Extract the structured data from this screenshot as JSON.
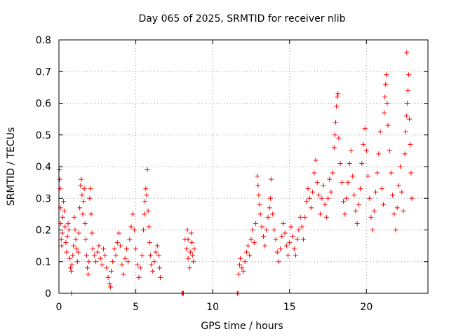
{
  "chart_data": {
    "type": "scatter",
    "title": "Day 065 of 2025, SRMTID for receiver nlib",
    "xlabel": "GPS time / hours",
    "ylabel": "SRMTID / TECUs",
    "xlim": [
      0,
      24
    ],
    "ylim": [
      0,
      0.8
    ],
    "x_ticks": [
      0,
      5,
      10,
      15,
      20
    ],
    "x_tick_labels": [
      "0",
      "5",
      "10",
      "15",
      "20"
    ],
    "y_ticks": [
      0,
      0.1,
      0.2,
      0.3,
      0.4,
      0.5,
      0.6,
      0.7,
      0.8
    ],
    "y_tick_labels": [
      "0",
      "0.1",
      "0.2",
      "0.3",
      "0.4",
      "0.5",
      "0.6",
      "0.7",
      "0.8"
    ],
    "grid": true,
    "marker": "plus",
    "color": "#ff0000",
    "series": [
      {
        "name": "SRMTID",
        "points": [
          [
            0.02,
            0.39
          ],
          [
            0.05,
            0.36
          ],
          [
            0.08,
            0.33
          ],
          [
            0.1,
            0.27
          ],
          [
            0.12,
            0.22
          ],
          [
            0.15,
            0.17
          ],
          [
            0.18,
            0.15
          ],
          [
            0.22,
            0.19
          ],
          [
            0.25,
            0.24
          ],
          [
            0.3,
            0.29
          ],
          [
            0.35,
            0.26
          ],
          [
            0.4,
            0.21
          ],
          [
            0.45,
            0.16
          ],
          [
            0.5,
            0.13
          ],
          [
            0.55,
            0.18
          ],
          [
            0.6,
            0.22
          ],
          [
            0.65,
            0.2
          ],
          [
            0.7,
            0.11
          ],
          [
            0.75,
            0.08
          ],
          [
            0.8,
            0.07
          ],
          [
            0.82,
            0.0
          ],
          [
            0.85,
            0.09
          ],
          [
            0.9,
            0.12
          ],
          [
            0.95,
            0.15
          ],
          [
            1.0,
            0.24
          ],
          [
            1.05,
            0.2
          ],
          [
            1.1,
            0.17
          ],
          [
            1.15,
            0.14
          ],
          [
            1.2,
            0.1
          ],
          [
            1.25,
            0.13
          ],
          [
            1.3,
            0.19
          ],
          [
            1.35,
            0.27
          ],
          [
            1.4,
            0.34
          ],
          [
            1.45,
            0.36
          ],
          [
            1.5,
            0.31
          ],
          [
            1.55,
            0.25
          ],
          [
            1.6,
            0.29
          ],
          [
            1.65,
            0.33
          ],
          [
            1.7,
            0.22
          ],
          [
            1.75,
            0.17
          ],
          [
            1.8,
            0.12
          ],
          [
            1.85,
            0.08
          ],
          [
            1.9,
            0.06
          ],
          [
            1.95,
            0.1
          ],
          [
            2.0,
            0.3
          ],
          [
            2.05,
            0.33
          ],
          [
            2.1,
            0.25
          ],
          [
            2.15,
            0.19
          ],
          [
            2.2,
            0.14
          ],
          [
            2.3,
            0.12
          ],
          [
            2.4,
            0.1
          ],
          [
            2.5,
            0.13
          ],
          [
            2.6,
            0.15
          ],
          [
            2.7,
            0.11
          ],
          [
            2.8,
            0.09
          ],
          [
            2.9,
            0.14
          ],
          [
            3.0,
            0.12
          ],
          [
            3.1,
            0.08
          ],
          [
            3.2,
            0.05
          ],
          [
            3.3,
            0.03
          ],
          [
            3.35,
            0.02
          ],
          [
            3.4,
            0.07
          ],
          [
            3.5,
            0.1
          ],
          [
            3.6,
            0.14
          ],
          [
            3.7,
            0.12
          ],
          [
            3.8,
            0.16
          ],
          [
            3.9,
            0.19
          ],
          [
            4.0,
            0.15
          ],
          [
            4.1,
            0.09
          ],
          [
            4.2,
            0.06
          ],
          [
            4.3,
            0.11
          ],
          [
            4.4,
            0.14
          ],
          [
            4.5,
            0.1
          ],
          [
            4.6,
            0.17
          ],
          [
            4.7,
            0.21
          ],
          [
            4.8,
            0.25
          ],
          [
            4.9,
            0.2
          ],
          [
            5.0,
            0.14
          ],
          [
            5.1,
            0.09
          ],
          [
            5.2,
            0.05
          ],
          [
            5.3,
            0.08
          ],
          [
            5.4,
            0.12
          ],
          [
            5.5,
            0.2
          ],
          [
            5.55,
            0.25
          ],
          [
            5.6,
            0.29
          ],
          [
            5.65,
            0.33
          ],
          [
            5.7,
            0.31
          ],
          [
            5.75,
            0.39
          ],
          [
            5.8,
            0.26
          ],
          [
            5.85,
            0.21
          ],
          [
            5.9,
            0.16
          ],
          [
            5.95,
            0.12
          ],
          [
            6.0,
            0.09
          ],
          [
            6.1,
            0.07
          ],
          [
            6.2,
            0.1
          ],
          [
            6.3,
            0.13
          ],
          [
            6.4,
            0.15
          ],
          [
            6.5,
            0.12
          ],
          [
            6.55,
            0.08
          ],
          [
            6.6,
            0.05
          ],
          [
            8.0,
            0.0
          ],
          [
            8.05,
            0.0
          ],
          [
            8.1,
            0.0
          ],
          [
            8.2,
            0.17
          ],
          [
            8.3,
            0.14
          ],
          [
            8.4,
            0.11
          ],
          [
            8.5,
            0.08
          ],
          [
            8.55,
            0.13
          ],
          [
            8.6,
            0.19
          ],
          [
            8.65,
            0.16
          ],
          [
            8.7,
            0.12
          ],
          [
            8.75,
            0.1
          ],
          [
            8.8,
            0.14
          ],
          [
            8.4,
            0.17
          ],
          [
            8.35,
            0.2
          ],
          [
            11.6,
            0.0
          ],
          [
            11.65,
            0.0
          ],
          [
            11.7,
            0.06
          ],
          [
            11.75,
            0.09
          ],
          [
            11.8,
            0.11
          ],
          [
            11.9,
            0.08
          ],
          [
            12.0,
            0.07
          ],
          [
            12.1,
            0.1
          ],
          [
            12.2,
            0.13
          ],
          [
            12.3,
            0.15
          ],
          [
            12.4,
            0.12
          ],
          [
            12.5,
            0.17
          ],
          [
            12.6,
            0.2
          ],
          [
            12.7,
            0.16
          ],
          [
            12.8,
            0.22
          ],
          [
            12.9,
            0.37
          ],
          [
            12.95,
            0.34
          ],
          [
            13.0,
            0.31
          ],
          [
            13.05,
            0.28
          ],
          [
            13.1,
            0.25
          ],
          [
            13.2,
            0.21
          ],
          [
            13.3,
            0.18
          ],
          [
            13.4,
            0.15
          ],
          [
            13.5,
            0.2
          ],
          [
            13.6,
            0.24
          ],
          [
            13.7,
            0.27
          ],
          [
            13.75,
            0.3
          ],
          [
            13.8,
            0.36
          ],
          [
            13.9,
            0.25
          ],
          [
            14.0,
            0.2
          ],
          [
            14.1,
            0.17
          ],
          [
            14.2,
            0.13
          ],
          [
            14.3,
            0.1
          ],
          [
            14.4,
            0.14
          ],
          [
            14.5,
            0.18
          ],
          [
            14.6,
            0.22
          ],
          [
            14.7,
            0.19
          ],
          [
            14.8,
            0.15
          ],
          [
            14.9,
            0.12
          ],
          [
            15.0,
            0.16
          ],
          [
            15.1,
            0.21
          ],
          [
            15.2,
            0.18
          ],
          [
            15.3,
            0.14
          ],
          [
            15.4,
            0.12
          ],
          [
            15.5,
            0.17
          ],
          [
            15.6,
            0.2
          ],
          [
            15.7,
            0.24
          ],
          [
            15.8,
            0.21
          ],
          [
            15.9,
            0.17
          ],
          [
            16.0,
            0.24
          ],
          [
            16.1,
            0.29
          ],
          [
            16.2,
            0.33
          ],
          [
            16.3,
            0.3
          ],
          [
            16.4,
            0.27
          ],
          [
            16.5,
            0.32
          ],
          [
            16.6,
            0.38
          ],
          [
            16.7,
            0.42
          ],
          [
            16.8,
            0.35
          ],
          [
            16.9,
            0.31
          ],
          [
            17.0,
            0.25
          ],
          [
            17.1,
            0.3
          ],
          [
            17.2,
            0.34
          ],
          [
            17.3,
            0.28
          ],
          [
            17.4,
            0.24
          ],
          [
            17.5,
            0.3
          ],
          [
            17.6,
            0.36
          ],
          [
            17.7,
            0.32
          ],
          [
            17.8,
            0.38
          ],
          [
            17.9,
            0.46
          ],
          [
            17.95,
            0.5
          ],
          [
            18.0,
            0.54
          ],
          [
            18.05,
            0.59
          ],
          [
            18.1,
            0.62
          ],
          [
            18.15,
            0.63
          ],
          [
            18.2,
            0.49
          ],
          [
            18.3,
            0.41
          ],
          [
            18.4,
            0.35
          ],
          [
            18.5,
            0.29
          ],
          [
            18.6,
            0.25
          ],
          [
            18.7,
            0.3
          ],
          [
            18.8,
            0.35
          ],
          [
            18.9,
            0.41
          ],
          [
            19.0,
            0.45
          ],
          [
            19.1,
            0.37
          ],
          [
            19.2,
            0.31
          ],
          [
            19.3,
            0.26
          ],
          [
            19.4,
            0.22
          ],
          [
            19.5,
            0.28
          ],
          [
            19.6,
            0.33
          ],
          [
            19.7,
            0.41
          ],
          [
            19.8,
            0.47
          ],
          [
            19.9,
            0.52
          ],
          [
            20.0,
            0.45
          ],
          [
            20.1,
            0.37
          ],
          [
            20.2,
            0.3
          ],
          [
            20.3,
            0.24
          ],
          [
            20.4,
            0.2
          ],
          [
            20.5,
            0.26
          ],
          [
            20.6,
            0.32
          ],
          [
            20.7,
            0.38
          ],
          [
            20.8,
            0.44
          ],
          [
            20.9,
            0.51
          ],
          [
            21.0,
            0.33
          ],
          [
            21.1,
            0.28
          ],
          [
            21.15,
            0.57
          ],
          [
            21.2,
            0.62
          ],
          [
            21.25,
            0.66
          ],
          [
            21.3,
            0.69
          ],
          [
            21.35,
            0.6
          ],
          [
            21.4,
            0.53
          ],
          [
            21.5,
            0.45
          ],
          [
            21.6,
            0.38
          ],
          [
            21.7,
            0.31
          ],
          [
            21.8,
            0.25
          ],
          [
            21.9,
            0.2
          ],
          [
            22.0,
            0.27
          ],
          [
            22.1,
            0.34
          ],
          [
            22.2,
            0.4
          ],
          [
            22.3,
            0.32
          ],
          [
            22.4,
            0.26
          ],
          [
            22.5,
            0.44
          ],
          [
            22.55,
            0.51
          ],
          [
            22.6,
            0.56
          ],
          [
            22.65,
            0.6
          ],
          [
            22.7,
            0.64
          ],
          [
            22.75,
            0.69
          ],
          [
            22.8,
            0.55
          ],
          [
            22.85,
            0.47
          ],
          [
            22.9,
            0.38
          ],
          [
            22.95,
            0.3
          ],
          [
            22.62,
            0.76
          ]
        ]
      }
    ]
  }
}
